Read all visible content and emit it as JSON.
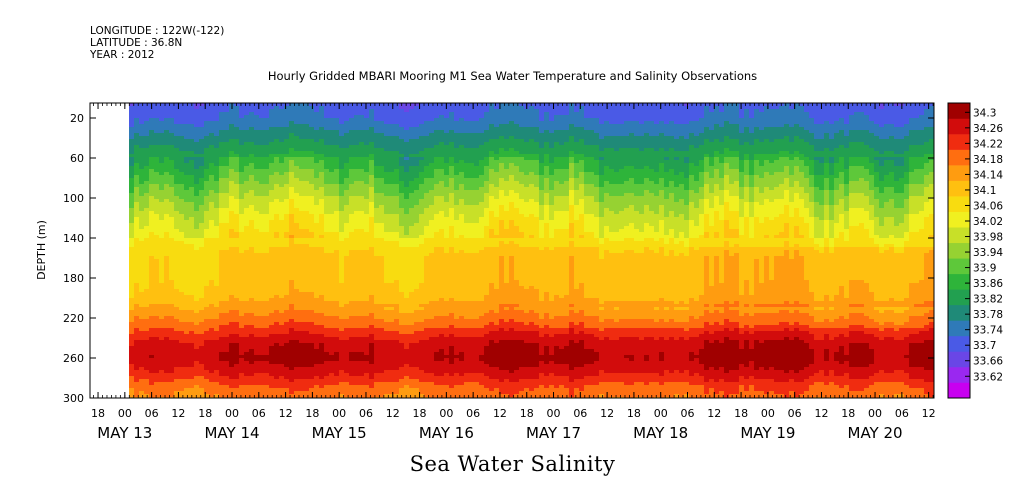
{
  "header": {
    "longitude": "LONGITUDE : 122W(-122)",
    "latitude": "LATITUDE : 36.8N",
    "year": "YEAR : 2012"
  },
  "chart_data": {
    "type": "heatmap",
    "title": "Hourly Gridded MBARI Mooring M1 Sea Water Temperature and Salinity Observations",
    "variable": "Sea Water Salinity",
    "ylabel": "DEPTH (m)",
    "ylim": [
      300,
      5
    ],
    "y_ticks": [
      20,
      60,
      100,
      140,
      180,
      220,
      260,
      300
    ],
    "y_reversed": true,
    "x_hour_ticks": [
      "18",
      "00",
      "06",
      "12",
      "18",
      "00",
      "06",
      "12",
      "18",
      "00",
      "06",
      "12",
      "18",
      "00",
      "06",
      "12",
      "18",
      "00",
      "06",
      "12",
      "18",
      "00",
      "06",
      "12",
      "18",
      "00",
      "06",
      "12",
      "18",
      "00",
      "06",
      "12"
    ],
    "x_day_labels": [
      "MAY 13",
      "MAY 14",
      "MAY 15",
      "MAY 16",
      "MAY 17",
      "MAY 18",
      "MAY 19",
      "MAY 20"
    ],
    "x_range_hours": [
      -9,
      5.5
    ],
    "data_start_hour": 0,
    "colorbar": {
      "levels": [
        33.62,
        33.66,
        33.7,
        33.74,
        33.78,
        33.82,
        33.86,
        33.9,
        33.94,
        33.98,
        34.02,
        34.06,
        34.1,
        34.14,
        34.18,
        34.22,
        34.26,
        34.3
      ],
      "tick_labels": [
        "34.3",
        "34.26",
        "34.22",
        "34.18",
        "34.14",
        "34.1",
        "34.06",
        "34.02",
        "33.98",
        "33.94",
        "33.9",
        "33.86",
        "33.82",
        "33.78",
        "33.74",
        "33.7",
        "33.66",
        "33.62"
      ],
      "colors": [
        "#c800f0",
        "#9a28f0",
        "#6a46e6",
        "#4a5ae6",
        "#2f7ab8",
        "#1f8a78",
        "#22a050",
        "#2eb43a",
        "#5ec83a",
        "#96d232",
        "#c8e028",
        "#f0f020",
        "#f8dc10",
        "#ffc010",
        "#ff9c10",
        "#ff6e10",
        "#f02c10",
        "#d20c0c",
        "#a00000"
      ]
    },
    "depth_profile_salinity": [
      {
        "depth": 5,
        "value": 33.72
      },
      {
        "depth": 20,
        "value": 33.74
      },
      {
        "depth": 40,
        "value": 33.8
      },
      {
        "depth": 60,
        "value": 33.86
      },
      {
        "depth": 80,
        "value": 33.92
      },
      {
        "depth": 100,
        "value": 33.98
      },
      {
        "depth": 120,
        "value": 34.03
      },
      {
        "depth": 140,
        "value": 34.07
      },
      {
        "depth": 160,
        "value": 34.1
      },
      {
        "depth": 180,
        "value": 34.1
      },
      {
        "depth": 200,
        "value": 34.12
      },
      {
        "depth": 215,
        "value": 34.17
      },
      {
        "depth": 230,
        "value": 34.22
      },
      {
        "depth": 245,
        "value": 34.28
      },
      {
        "depth": 260,
        "value": 34.3
      },
      {
        "depth": 275,
        "value": 34.26
      },
      {
        "depth": 290,
        "value": 34.2
      },
      {
        "depth": 300,
        "value": 34.18
      }
    ]
  }
}
